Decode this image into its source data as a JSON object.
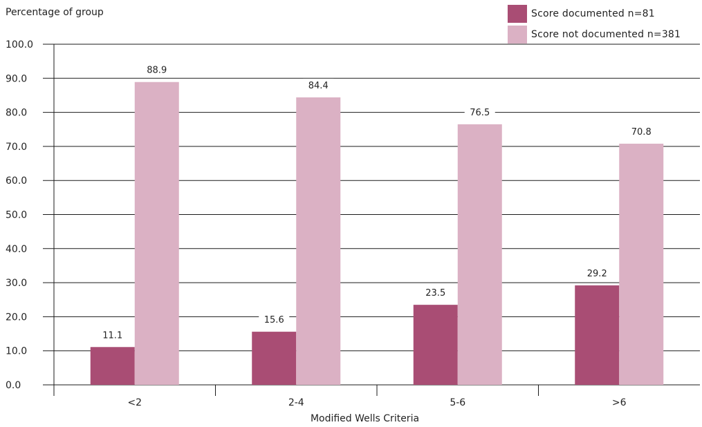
{
  "chart_data": {
    "type": "bar",
    "ylabel": "Percentage of group",
    "xlabel": "Modified Wells Criteria",
    "categories": [
      "<2",
      "2-4",
      "5-6",
      ">6"
    ],
    "series": [
      {
        "name": "Score documented n=81",
        "color": "#a94d74",
        "values": [
          11.1,
          15.6,
          23.5,
          29.2
        ]
      },
      {
        "name": "Score not documented n=381",
        "color": "#dbb1c4",
        "values": [
          88.9,
          84.4,
          76.5,
          70.8
        ]
      }
    ],
    "ylim": [
      0,
      100
    ],
    "ytick_labels": [
      "0.0",
      "10.0",
      "20.0",
      "30.0",
      "40.0",
      "50.0",
      "60.0",
      "70.0",
      "80.0",
      "90.0",
      "100.0"
    ],
    "data_labels": [
      [
        "11.1",
        "15.6",
        "23.5",
        "29.2"
      ],
      [
        "88.9",
        "84.4",
        "76.5",
        "70.8"
      ]
    ],
    "grid": true,
    "legend_position": "top-right"
  }
}
